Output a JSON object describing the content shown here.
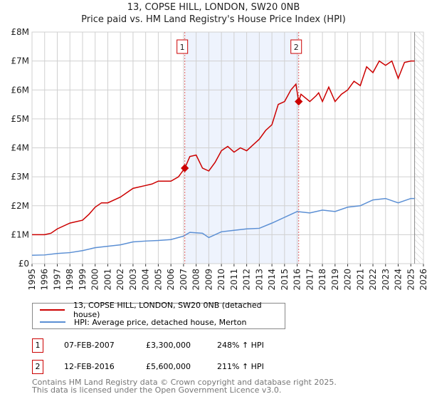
{
  "title": "13, COPSE HILL, LONDON, SW20 0NB",
  "subtitle": "Price paid vs. HM Land Registry's House Price Index (HPI)",
  "colors": {
    "property": "#cc0000",
    "hpi": "#5b8fd4",
    "shade": "#eef3fd"
  },
  "legend": [
    {
      "label": "13, COPSE HILL, LONDON, SW20 0NB (detached house)"
    },
    {
      "label": "HPI: Average price, detached house, Merton"
    }
  ],
  "sales": [
    {
      "num": "1",
      "date": "07-FEB-2007",
      "price": "£3,300,000",
      "hpi": "248% ↑ HPI",
      "x": 2007.1,
      "y": 3.3
    },
    {
      "num": "2",
      "date": "12-FEB-2016",
      "price": "£5,600,000",
      "hpi": "211% ↑ HPI",
      "x": 2016.12,
      "y": 5.6
    }
  ],
  "footer": [
    "Contains HM Land Registry data © Crown copyright and database right 2025.",
    "This data is licensed under the Open Government Licence v3.0."
  ],
  "chart_data": {
    "type": "line",
    "xlim": [
      1995,
      2026
    ],
    "ylim": [
      0,
      8
    ],
    "xticks": [
      "1995",
      "1996",
      "1997",
      "1998",
      "1999",
      "2000",
      "2001",
      "2002",
      "2003",
      "2004",
      "2005",
      "2006",
      "2007",
      "2008",
      "2009",
      "2010",
      "2011",
      "2012",
      "2013",
      "2014",
      "2015",
      "2016",
      "2017",
      "2018",
      "2019",
      "2020",
      "2021",
      "2022",
      "2023",
      "2024",
      "2025",
      "2026"
    ],
    "yticks": [
      {
        "v": 0,
        "l": "£0"
      },
      {
        "v": 1,
        "l": "£1M"
      },
      {
        "v": 2,
        "l": "£2M"
      },
      {
        "v": 3,
        "l": "£3M"
      },
      {
        "v": 4,
        "l": "£4M"
      },
      {
        "v": 5,
        "l": "£5M"
      },
      {
        "v": 6,
        "l": "£6M"
      },
      {
        "v": 7,
        "l": "£7M"
      },
      {
        "v": 8,
        "l": "£8M"
      }
    ],
    "forecast_start": 2025.3,
    "series": [
      {
        "name": "13, COPSE HILL, LONDON, SW20 0NB (detached house)",
        "points": [
          [
            1995,
            1.0
          ],
          [
            1996,
            1.0
          ],
          [
            1996.5,
            1.05
          ],
          [
            1997,
            1.2
          ],
          [
            1998,
            1.4
          ],
          [
            1999,
            1.5
          ],
          [
            1999.5,
            1.7
          ],
          [
            2000,
            1.95
          ],
          [
            2000.5,
            2.1
          ],
          [
            2001,
            2.1
          ],
          [
            2002,
            2.3
          ],
          [
            2003,
            2.6
          ],
          [
            2004,
            2.7
          ],
          [
            2004.5,
            2.75
          ],
          [
            2005,
            2.85
          ],
          [
            2006,
            2.85
          ],
          [
            2006.6,
            3.0
          ],
          [
            2007.1,
            3.3
          ],
          [
            2007.5,
            3.7
          ],
          [
            2008,
            3.75
          ],
          [
            2008.5,
            3.3
          ],
          [
            2009,
            3.2
          ],
          [
            2009.5,
            3.5
          ],
          [
            2010,
            3.9
          ],
          [
            2010.5,
            4.05
          ],
          [
            2011,
            3.85
          ],
          [
            2011.5,
            4.0
          ],
          [
            2012,
            3.9
          ],
          [
            2012.5,
            4.1
          ],
          [
            2013,
            4.3
          ],
          [
            2013.5,
            4.6
          ],
          [
            2014,
            4.8
          ],
          [
            2014.5,
            5.5
          ],
          [
            2015,
            5.6
          ],
          [
            2015.5,
            6.0
          ],
          [
            2015.9,
            6.2
          ],
          [
            2016.12,
            5.6
          ],
          [
            2016.3,
            5.85
          ],
          [
            2017,
            5.6
          ],
          [
            2017.5,
            5.8
          ],
          [
            2017.7,
            5.9
          ],
          [
            2018,
            5.6
          ],
          [
            2018.5,
            6.1
          ],
          [
            2019,
            5.6
          ],
          [
            2019.5,
            5.85
          ],
          [
            2020,
            6.0
          ],
          [
            2020.5,
            6.3
          ],
          [
            2021,
            6.15
          ],
          [
            2021.5,
            6.8
          ],
          [
            2022,
            6.6
          ],
          [
            2022.5,
            7.0
          ],
          [
            2023,
            6.85
          ],
          [
            2023.5,
            7.0
          ],
          [
            2024,
            6.4
          ],
          [
            2024.5,
            6.95
          ],
          [
            2025,
            7.0
          ],
          [
            2025.3,
            7.0
          ]
        ]
      },
      {
        "name": "HPI: Average price, detached house, Merton",
        "points": [
          [
            1995,
            0.29
          ],
          [
            1996,
            0.3
          ],
          [
            1997,
            0.35
          ],
          [
            1998,
            0.38
          ],
          [
            1999,
            0.45
          ],
          [
            2000,
            0.55
          ],
          [
            2001,
            0.6
          ],
          [
            2002,
            0.65
          ],
          [
            2003,
            0.75
          ],
          [
            2004,
            0.78
          ],
          [
            2005,
            0.8
          ],
          [
            2006,
            0.83
          ],
          [
            2007,
            0.95
          ],
          [
            2007.5,
            1.08
          ],
          [
            2008.5,
            1.05
          ],
          [
            2009,
            0.9
          ],
          [
            2010,
            1.1
          ],
          [
            2011,
            1.15
          ],
          [
            2012,
            1.2
          ],
          [
            2013,
            1.22
          ],
          [
            2014,
            1.4
          ],
          [
            2015,
            1.6
          ],
          [
            2015.5,
            1.7
          ],
          [
            2016,
            1.8
          ],
          [
            2017,
            1.75
          ],
          [
            2018,
            1.85
          ],
          [
            2019,
            1.8
          ],
          [
            2020,
            1.95
          ],
          [
            2021,
            2.0
          ],
          [
            2022,
            2.2
          ],
          [
            2023,
            2.25
          ],
          [
            2024,
            2.1
          ],
          [
            2025,
            2.25
          ],
          [
            2025.3,
            2.25
          ]
        ]
      }
    ]
  }
}
